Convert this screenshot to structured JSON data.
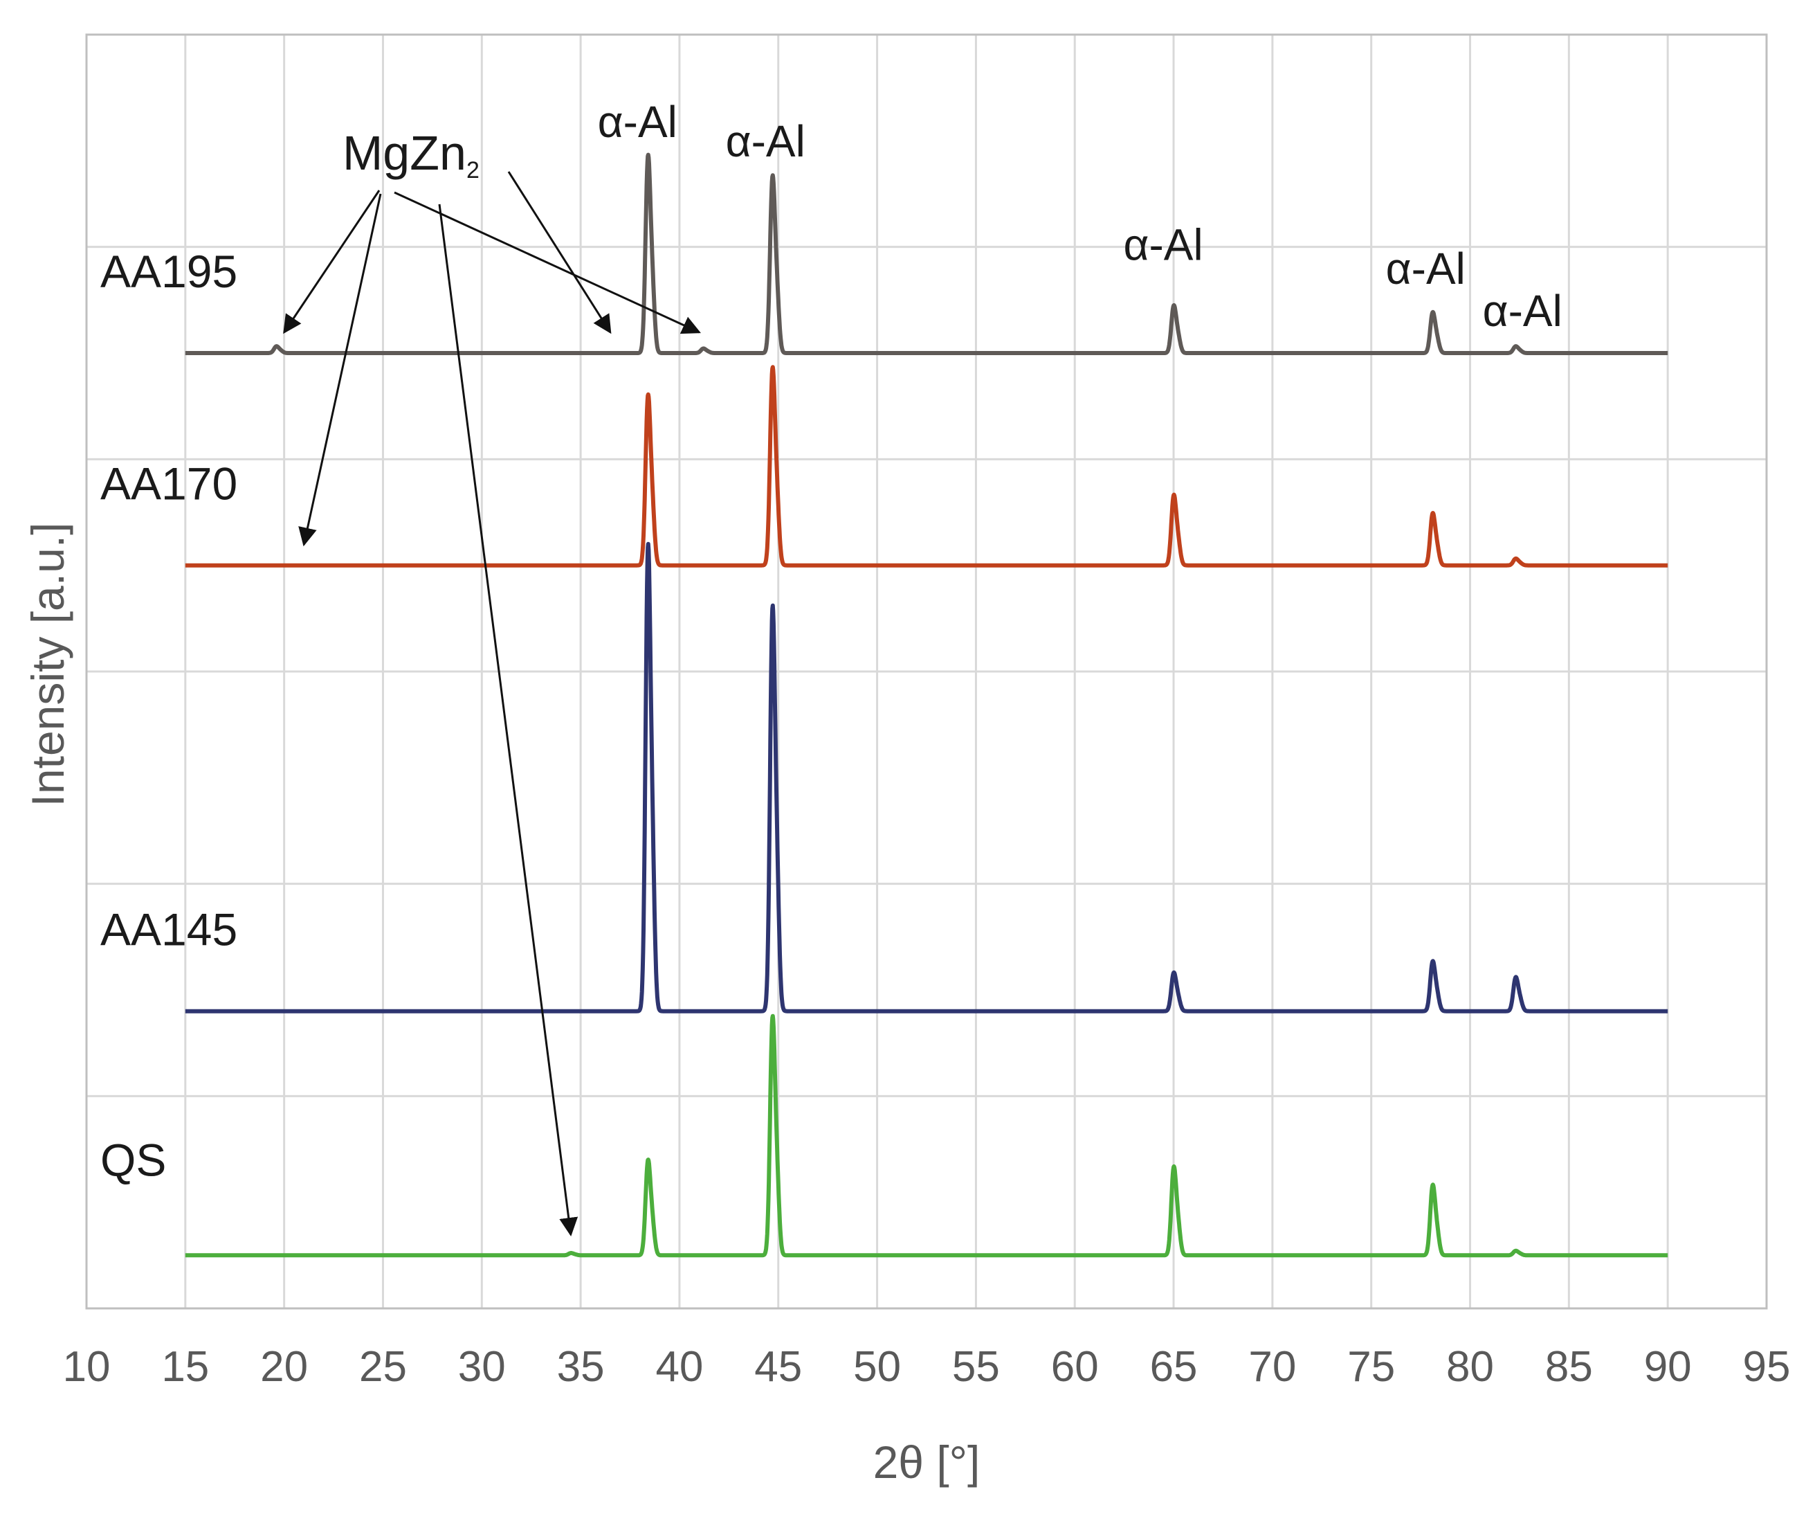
{
  "chart_data": {
    "type": "line",
    "title": "",
    "xlabel": "2θ [°]",
    "ylabel": "Intensity [a.u.]",
    "xlim": [
      10,
      95
    ],
    "x_ticks": [
      "10",
      "15",
      "20",
      "25",
      "30",
      "35",
      "40",
      "45",
      "50",
      "55",
      "60",
      "65",
      "70",
      "75",
      "80",
      "85",
      "90",
      "95"
    ],
    "ylim": [
      0,
      6
    ],
    "grid": true,
    "series": [
      {
        "name": "AA195",
        "color": "#5f5a57",
        "baseline": 4.5,
        "peaks": [
          {
            "x": 19.6,
            "h": 0.03
          },
          {
            "x": 38.4,
            "h": 0.87
          },
          {
            "x": 41.2,
            "h": 0.02
          },
          {
            "x": 44.7,
            "h": 0.78
          },
          {
            "x": 65.0,
            "h": 0.21
          },
          {
            "x": 78.1,
            "h": 0.18
          },
          {
            "x": 82.3,
            "h": 0.03
          }
        ]
      },
      {
        "name": "AA170",
        "color": "#c0411c",
        "baseline": 3.5,
        "peaks": [
          {
            "x": 38.4,
            "h": 0.75
          },
          {
            "x": 44.7,
            "h": 0.87
          },
          {
            "x": 65.0,
            "h": 0.31
          },
          {
            "x": 78.1,
            "h": 0.23
          },
          {
            "x": 82.3,
            "h": 0.03
          }
        ]
      },
      {
        "name": "AA145",
        "color": "#2e3570",
        "baseline": 1.4,
        "peaks": [
          {
            "x": 38.4,
            "h": 2.05
          },
          {
            "x": 44.7,
            "h": 1.78
          },
          {
            "x": 65.0,
            "h": 0.17
          },
          {
            "x": 78.1,
            "h": 0.22
          },
          {
            "x": 82.3,
            "h": 0.15
          }
        ]
      },
      {
        "name": "QS",
        "color": "#4cae3c",
        "baseline": 0.25,
        "peaks": [
          {
            "x": 34.5,
            "h": 0.01
          },
          {
            "x": 38.4,
            "h": 0.42
          },
          {
            "x": 44.7,
            "h": 1.05
          },
          {
            "x": 65.0,
            "h": 0.39
          },
          {
            "x": 78.1,
            "h": 0.31
          },
          {
            "x": 82.3,
            "h": 0.02
          }
        ]
      }
    ],
    "annotations": {
      "alpha_al_label": "α-Al",
      "mgzn2_base": "MgZn",
      "mgzn2_sub": "2",
      "alpha_al_peaks": [
        {
          "x": 38.4,
          "series": "AA195"
        },
        {
          "x": 44.7,
          "series": "AA195"
        },
        {
          "x": 65.0,
          "series": "AA195"
        },
        {
          "x": 78.1,
          "series": "AA195"
        },
        {
          "x": 82.3,
          "series": "AA195"
        }
      ],
      "mgzn2_targets": [
        {
          "x": 20.0,
          "series": "AA195"
        },
        {
          "x": 36.5,
          "series": "AA195"
        },
        {
          "x": 41.0,
          "series": "AA195"
        },
        {
          "x": 21.0,
          "series": "AA170"
        },
        {
          "x": 34.5,
          "series": "QS"
        }
      ]
    }
  }
}
